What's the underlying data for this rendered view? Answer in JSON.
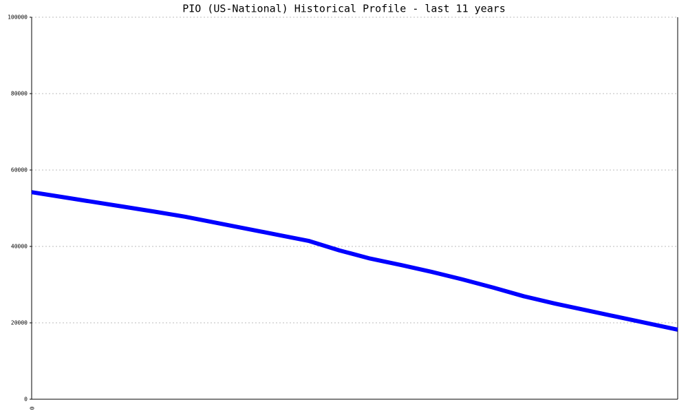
{
  "chart_data": {
    "type": "line",
    "title": "PIO (US-National) Historical Profile - last 11 years",
    "categories": [
      "0",
      null,
      null,
      null,
      null,
      null,
      null,
      null,
      null,
      null,
      null,
      null,
      null,
      null,
      null,
      null,
      null,
      null,
      null,
      null,
      null,
      null
    ],
    "series": [
      {
        "color": "#0000ff",
        "values": [
          54200,
          52930,
          51650,
          50380,
          49100,
          47760,
          46190,
          44610,
          43030,
          41460,
          38970,
          36830,
          35140,
          33350,
          31370,
          29240,
          26950,
          25060,
          23340,
          21630,
          19920,
          18200
        ]
      }
    ],
    "ylim": [
      0,
      100000
    ],
    "yticks": [
      0,
      20000,
      40000,
      60000,
      80000,
      100000
    ],
    "grid": true
  }
}
